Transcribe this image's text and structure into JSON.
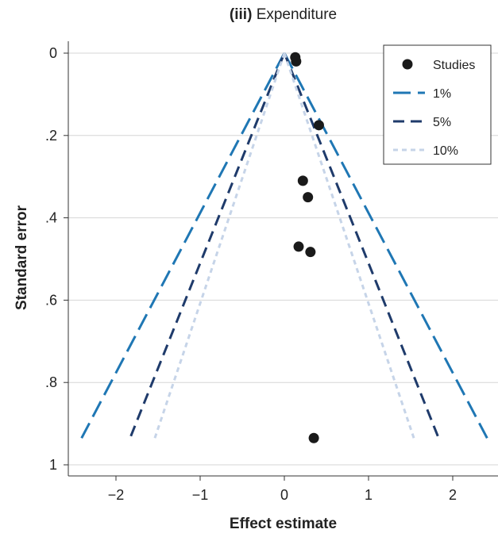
{
  "chart_data": {
    "type": "scatter",
    "title_bold": "(iii)",
    "title_rest": "Expenditure",
    "xlabel": "Effect estimate",
    "ylabel": "Standard error",
    "xlim": [
      -2.55,
      2.55
    ],
    "ylim": [
      0,
      1.02
    ],
    "y_inverted": true,
    "xticks": [
      -2,
      -1,
      0,
      1,
      2
    ],
    "xtick_labels": [
      "−2",
      "−1",
      "0",
      "1",
      "2"
    ],
    "yticks": [
      0,
      0.2,
      0.4,
      0.6,
      0.8,
      1
    ],
    "ytick_labels": [
      "0",
      ".2",
      ".4",
      ".6",
      ".8",
      "1"
    ],
    "grid": "horizontal",
    "legend_position": "top-right",
    "series": [
      {
        "name": "Studies",
        "kind": "points",
        "color": "#1a1a1a",
        "x": [
          0.13,
          0.14,
          0.41,
          0.22,
          0.28,
          0.17,
          0.31,
          0.35
        ],
        "y": [
          0.01,
          0.02,
          0.175,
          0.31,
          0.35,
          0.47,
          0.483,
          0.935
        ]
      },
      {
        "name": "1%",
        "kind": "funnel",
        "color": "#1f77b4",
        "z": 2.576,
        "y_range": [
          0,
          0.935
        ]
      },
      {
        "name": "5%",
        "kind": "funnel",
        "color": "#1f3b6b",
        "z": 1.96,
        "y_range": [
          0,
          0.935
        ]
      },
      {
        "name": "10%",
        "kind": "funnel",
        "color": "#c6d4e8",
        "z": 1.645,
        "y_range": [
          0,
          0.935
        ]
      }
    ]
  }
}
